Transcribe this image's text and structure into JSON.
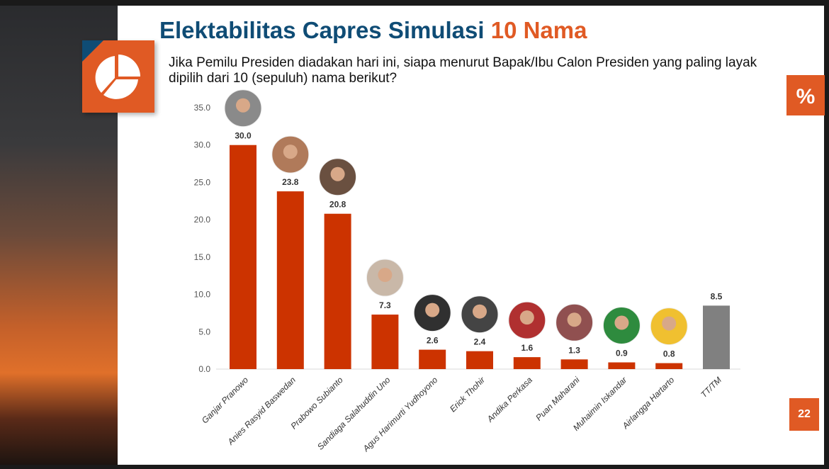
{
  "slide": {
    "title_main": "Elektabilitas Capres Simulasi ",
    "title_highlight": "10 Nama",
    "subtitle": "Jika Pemilu Presiden diadakan hari ini, siapa menurut Bapak/Ibu Calon Presiden yang paling layak dipilih dari 10 (sepuluh) nama berikut?",
    "percent_badge": "%",
    "page_number": "22",
    "icons": {
      "left_badge": "pie-chart-icon"
    },
    "colors": {
      "title": "#0f4c75",
      "accent": "#e05a24",
      "bar": "#cc3300",
      "bar_other": "#808080"
    }
  },
  "chart_data": {
    "type": "bar",
    "categories": [
      "Ganjar Pranowo",
      "Anies Rasyid Baswedan",
      "Prabowo Subianto",
      "Sandiaga Salahuddin Uno",
      "Agus Harimurti Yudhoyono",
      "Erick Thohir",
      "Andika Perkasa",
      "Puan Maharani",
      "Muhaimin Iskandar",
      "Airlangga Hartarto",
      "TT/TM"
    ],
    "values": [
      30.0,
      23.8,
      20.8,
      7.3,
      2.6,
      2.4,
      1.6,
      1.3,
      0.9,
      0.8,
      8.5
    ],
    "value_labels": [
      "30.0",
      "23.8",
      "20.8",
      "7.3",
      "2.6",
      "2.4",
      "1.6",
      "1.3",
      "0.9",
      "0.8",
      "8.5"
    ],
    "ylim": [
      0,
      35
    ],
    "yticks": [
      "0.0",
      "5.0",
      "10.0",
      "15.0",
      "20.0",
      "25.0",
      "30.0",
      "35.0"
    ],
    "grid": false,
    "legend": "none",
    "xlabel": "",
    "ylabel": ""
  }
}
